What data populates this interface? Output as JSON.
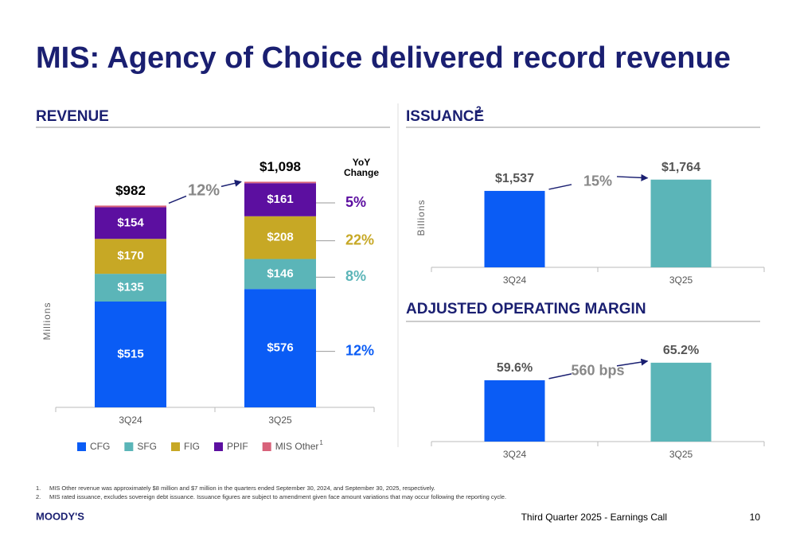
{
  "title": "MIS: Agency of Choice delivered record revenue",
  "chart_data": [
    {
      "type": "stacked_bar",
      "title": "REVENUE",
      "ylabel": "Millions",
      "categories": [
        "3Q24",
        "3Q25"
      ],
      "ylim": [
        0,
        1150
      ],
      "series": [
        {
          "name": "CFG",
          "color": "#0a5cf5",
          "values": [
            515,
            576
          ],
          "value_labels": [
            "$515",
            "$576"
          ],
          "yoy": "12%"
        },
        {
          "name": "SFG",
          "color": "#5bb5b8",
          "values": [
            135,
            146
          ],
          "value_labels": [
            "$135",
            "$146"
          ],
          "yoy": "8%"
        },
        {
          "name": "FIG",
          "color": "#c7a825",
          "values": [
            170,
            208
          ],
          "value_labels": [
            "$170",
            "$208"
          ],
          "yoy": "22%"
        },
        {
          "name": "PPIF",
          "color": "#5c0fa0",
          "values": [
            154,
            161
          ],
          "value_labels": [
            "$154",
            "$161"
          ],
          "yoy": "5%"
        },
        {
          "name": "MIS Other",
          "note": "1",
          "color": "#d8627a",
          "values": [
            8,
            7
          ]
        }
      ],
      "totals": {
        "values": [
          982,
          1098
        ],
        "value_labels": [
          "$982",
          "$1,098"
        ]
      },
      "change": "12%",
      "yoy_header": [
        "YoY",
        "Change"
      ]
    },
    {
      "type": "bar",
      "title": "ISSUANCE",
      "title_note": "2",
      "ylabel": "Billions",
      "categories": [
        "3Q24",
        "3Q25"
      ],
      "values": [
        1537,
        1764
      ],
      "value_labels": [
        "$1,537",
        "$1,764"
      ],
      "colors": [
        "#0a5cf5",
        "#5bb5b8"
      ],
      "ylim": [
        0,
        2000
      ],
      "change": "15%"
    },
    {
      "type": "bar",
      "title": "ADJUSTED OPERATING MARGIN",
      "categories": [
        "3Q24",
        "3Q25"
      ],
      "values": [
        59.6,
        65.2
      ],
      "value_labels": [
        "59.6%",
        "65.2%"
      ],
      "colors": [
        "#0a5cf5",
        "#5bb5b8"
      ],
      "ylim": [
        40,
        70
      ],
      "change": "560 bps"
    }
  ],
  "footnotes": [
    {
      "num": "1.",
      "text": "MIS Other revenue was approximately $8 million and $7 million in the quarters ended September 30, 2024, and September 30, 2025, respectively."
    },
    {
      "num": "2.",
      "text": "MIS rated issuance, excludes sovereign debt issuance. Issuance figures are subject to amendment given face amount variations that may occur following the reporting cycle."
    }
  ],
  "footer": {
    "logo": "MOODY'S",
    "event": "Third Quarter 2025 - Earnings Call",
    "page": "10"
  }
}
